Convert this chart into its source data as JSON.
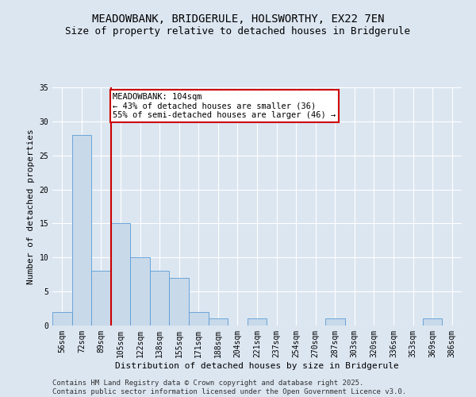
{
  "title_line1": "MEADOWBANK, BRIDGERULE, HOLSWORTHY, EX22 7EN",
  "title_line2": "Size of property relative to detached houses in Bridgerule",
  "xlabel": "Distribution of detached houses by size in Bridgerule",
  "ylabel": "Number of detached properties",
  "categories": [
    "56sqm",
    "72sqm",
    "89sqm",
    "105sqm",
    "122sqm",
    "138sqm",
    "155sqm",
    "171sqm",
    "188sqm",
    "204sqm",
    "221sqm",
    "237sqm",
    "254sqm",
    "270sqm",
    "287sqm",
    "303sqm",
    "320sqm",
    "336sqm",
    "353sqm",
    "369sqm",
    "386sqm"
  ],
  "values": [
    2,
    28,
    8,
    15,
    10,
    8,
    7,
    2,
    1,
    0,
    1,
    0,
    0,
    0,
    1,
    0,
    0,
    0,
    0,
    1,
    0
  ],
  "bar_color": "#c8d9ea",
  "bar_edge_color": "#5b9bd5",
  "annotation_text": "MEADOWBANK: 104sqm\n← 43% of detached houses are smaller (36)\n55% of semi-detached houses are larger (46) →",
  "annotation_box_color": "#ffffff",
  "annotation_box_edge_color": "#cc0000",
  "vline_color": "#cc0000",
  "vline_x": 2.5,
  "ylim": [
    0,
    35
  ],
  "yticks": [
    0,
    5,
    10,
    15,
    20,
    25,
    30,
    35
  ],
  "background_color": "#dce6f1",
  "plot_bg_color": "#dce6f1",
  "footer_line1": "Contains HM Land Registry data © Crown copyright and database right 2025.",
  "footer_line2": "Contains public sector information licensed under the Open Government Licence v3.0.",
  "title_fontsize": 10,
  "subtitle_fontsize": 9,
  "axis_label_fontsize": 8,
  "tick_fontsize": 7,
  "annotation_fontsize": 7.5,
  "footer_fontsize": 6.5
}
